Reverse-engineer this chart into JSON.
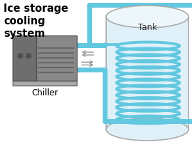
{
  "bg_color": "#ffffff",
  "title_text": "Ice storage\ncooling\nsystem",
  "chiller_label": "Chiller",
  "tank_label": "Tank",
  "pipe_color": "#62c8e0",
  "pipe_lw": 5.0,
  "chiller_fill1": "#6e6e6e",
  "chiller_fill2": "#888888",
  "chiller_border": "#505050",
  "tank_fill": "#dff0f8",
  "tank_top_fill": "#eef7fc",
  "tank_border": "#aaaaaa",
  "coil_color": "#62c8e0",
  "coil_lw": 2.8,
  "arrow_color": "#999999",
  "coil_n": 13
}
